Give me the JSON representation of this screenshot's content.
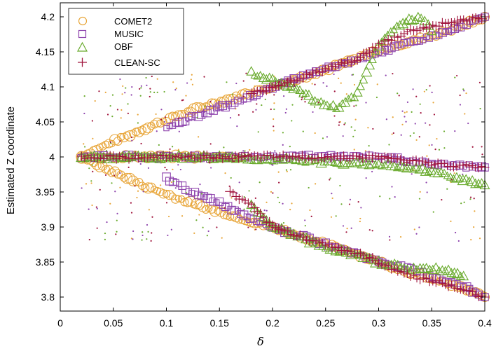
{
  "chart_data": {
    "type": "scatter",
    "title": "",
    "xlabel": "δ",
    "ylabel": "Estimated Z coordinate",
    "xlim": [
      0,
      0.4
    ],
    "ylim": [
      3.78,
      4.22
    ],
    "x_ticks": [
      0,
      0.05,
      0.1,
      0.15,
      0.2,
      0.25,
      0.3,
      0.35,
      0.4
    ],
    "x_tick_labels": [
      "0",
      "0.05",
      "0.1",
      "0.15",
      "0.2",
      "0.25",
      "0.3",
      "0.35",
      "0.4"
    ],
    "y_ticks": [
      3.8,
      3.85,
      3.9,
      3.95,
      4.0,
      4.05,
      4.1,
      4.15,
      4.2
    ],
    "y_tick_labels": [
      "3.8",
      "3.85",
      "3.9",
      "3.95",
      "4",
      "4.05",
      "4.1",
      "4.15",
      "4.2"
    ],
    "grid": false,
    "legend_position": "top-left",
    "series": [
      {
        "name": "COMET2",
        "marker": "circle",
        "color": "#E8A63A",
        "branches": [
          {
            "x": [
              0.02,
              0.04,
              0.06,
              0.08,
              0.1,
              0.12,
              0.14,
              0.16,
              0.18,
              0.2,
              0.22,
              0.25,
              0.28,
              0.3,
              0.33,
              0.36,
              0.38,
              0.4
            ],
            "y": [
              4.0,
              4.015,
              4.028,
              4.041,
              4.053,
              4.064,
              4.074,
              4.083,
              4.092,
              4.1,
              4.11,
              4.125,
              4.14,
              4.152,
              4.165,
              4.178,
              4.188,
              4.2
            ]
          },
          {
            "x": [
              0.02,
              0.04,
              0.06,
              0.08,
              0.1,
              0.12,
              0.14,
              0.16,
              0.18,
              0.2,
              0.22,
              0.25,
              0.28,
              0.3,
              0.33,
              0.36,
              0.38,
              0.4
            ],
            "y": [
              4.0,
              3.985,
              3.972,
              3.958,
              3.947,
              3.936,
              3.926,
              3.917,
              3.908,
              3.9,
              3.89,
              3.875,
              3.862,
              3.85,
              3.835,
              3.822,
              3.812,
              3.8
            ]
          },
          {
            "x": [
              0.02,
              0.05,
              0.1,
              0.15,
              0.17
            ],
            "y": [
              4.0,
              4.0,
              4.0,
              4.0,
              4.0
            ]
          }
        ]
      },
      {
        "name": "MUSIC",
        "marker": "square",
        "color": "#8E44AD",
        "branches": [
          {
            "x": [
              0.1,
              0.13,
              0.15,
              0.17,
              0.2,
              0.22,
              0.25,
              0.28,
              0.3,
              0.33,
              0.36,
              0.38,
              0.4
            ],
            "y": [
              4.04,
              4.06,
              4.07,
              4.08,
              4.1,
              4.11,
              4.125,
              4.14,
              4.15,
              4.163,
              4.176,
              4.187,
              4.2
            ]
          },
          {
            "x": [
              0.1,
              0.13,
              0.15,
              0.17,
              0.2,
              0.22,
              0.25,
              0.28,
              0.3,
              0.33,
              0.36,
              0.38,
              0.4
            ],
            "y": [
              3.97,
              3.945,
              3.935,
              3.92,
              3.9,
              3.89,
              3.875,
              3.862,
              3.85,
              3.84,
              3.825,
              3.815,
              3.8
            ]
          },
          {
            "x": [
              0.02,
              0.05,
              0.1,
              0.15,
              0.3,
              0.35,
              0.4
            ],
            "y": [
              4.0,
              4.0,
              4.0,
              4.0,
              4.0,
              3.99,
              3.985
            ]
          }
        ]
      },
      {
        "name": "OBF",
        "marker": "triangle",
        "color": "#6AAB2E",
        "branches": [
          {
            "x": [
              0.18,
              0.2,
              0.22,
              0.24,
              0.26,
              0.28,
              0.3,
              0.32,
              0.34,
              0.35
            ],
            "y": [
              4.12,
              4.11,
              4.1,
              4.08,
              4.07,
              4.09,
              4.16,
              4.19,
              4.2,
              4.18
            ]
          },
          {
            "x": [
              0.18,
              0.2,
              0.22,
              0.25,
              0.28,
              0.3,
              0.33,
              0.36,
              0.38
            ],
            "y": [
              3.93,
              3.9,
              3.89,
              3.87,
              3.86,
              3.85,
              3.84,
              3.84,
              3.83
            ]
          },
          {
            "x": [
              0.02,
              0.05,
              0.1,
              0.15,
              0.3,
              0.35,
              0.4
            ],
            "y": [
              4.0,
              4.0,
              4.0,
              4.0,
              3.99,
              3.98,
              3.96
            ]
          }
        ]
      },
      {
        "name": "CLEAN-SC",
        "marker": "plus",
        "color": "#A0143C",
        "branches": [
          {
            "x": [
              0.18,
              0.2,
              0.22,
              0.25,
              0.28,
              0.3,
              0.33,
              0.36,
              0.38,
              0.4
            ],
            "y": [
              4.09,
              4.1,
              4.11,
              4.125,
              4.14,
              4.16,
              4.18,
              4.19,
              4.195,
              4.2
            ]
          },
          {
            "x": [
              0.16,
              0.18,
              0.2,
              0.22,
              0.25,
              0.28,
              0.3,
              0.33,
              0.36,
              0.38,
              0.4
            ],
            "y": [
              3.95,
              3.93,
              3.9,
              3.89,
              3.875,
              3.862,
              3.85,
              3.83,
              3.82,
              3.81,
              3.8
            ]
          },
          {
            "x": [
              0.02,
              0.05,
              0.1,
              0.15,
              0.3,
              0.35,
              0.4
            ],
            "y": [
              4.0,
              4.0,
              4.0,
              4.0,
              4.0,
              3.99,
              3.985
            ]
          }
        ]
      }
    ]
  }
}
